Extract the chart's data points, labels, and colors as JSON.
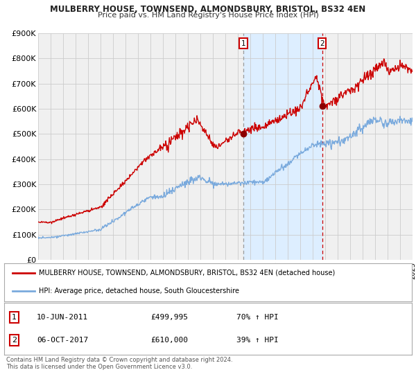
{
  "title": "MULBERRY HOUSE, TOWNSEND, ALMONDSBURY, BRISTOL, BS32 4EN",
  "subtitle": "Price paid vs. HM Land Registry's House Price Index (HPI)",
  "legend_line1": "MULBERRY HOUSE, TOWNSEND, ALMONDSBURY, BRISTOL, BS32 4EN (detached house)",
  "legend_line2": "HPI: Average price, detached house, South Gloucestershire",
  "footnote": "Contains HM Land Registry data © Crown copyright and database right 2024.\nThis data is licensed under the Open Government Licence v3.0.",
  "sale1_date": "10-JUN-2011",
  "sale1_price": "£499,995",
  "sale1_hpi": "70% ↑ HPI",
  "sale2_date": "06-OCT-2017",
  "sale2_price": "£610,000",
  "sale2_hpi": "39% ↑ HPI",
  "red_color": "#cc0000",
  "blue_color": "#7aaadd",
  "bg_color": "#ffffff",
  "plot_bg_color": "#f0f0f0",
  "shade_color": "#ddeeff",
  "grid_color": "#cccccc",
  "ylim": [
    0,
    900000
  ],
  "ytick_labels": [
    "£0",
    "£100K",
    "£200K",
    "£300K",
    "£400K",
    "£500K",
    "£600K",
    "£700K",
    "£800K",
    "£900K"
  ],
  "ytick_values": [
    0,
    100000,
    200000,
    300000,
    400000,
    500000,
    600000,
    700000,
    800000,
    900000
  ],
  "sale1_x": 2011.44,
  "sale1_y": 499995,
  "sale2_x": 2017.75,
  "sale2_y": 610000,
  "xmin": 1995,
  "xmax": 2025
}
